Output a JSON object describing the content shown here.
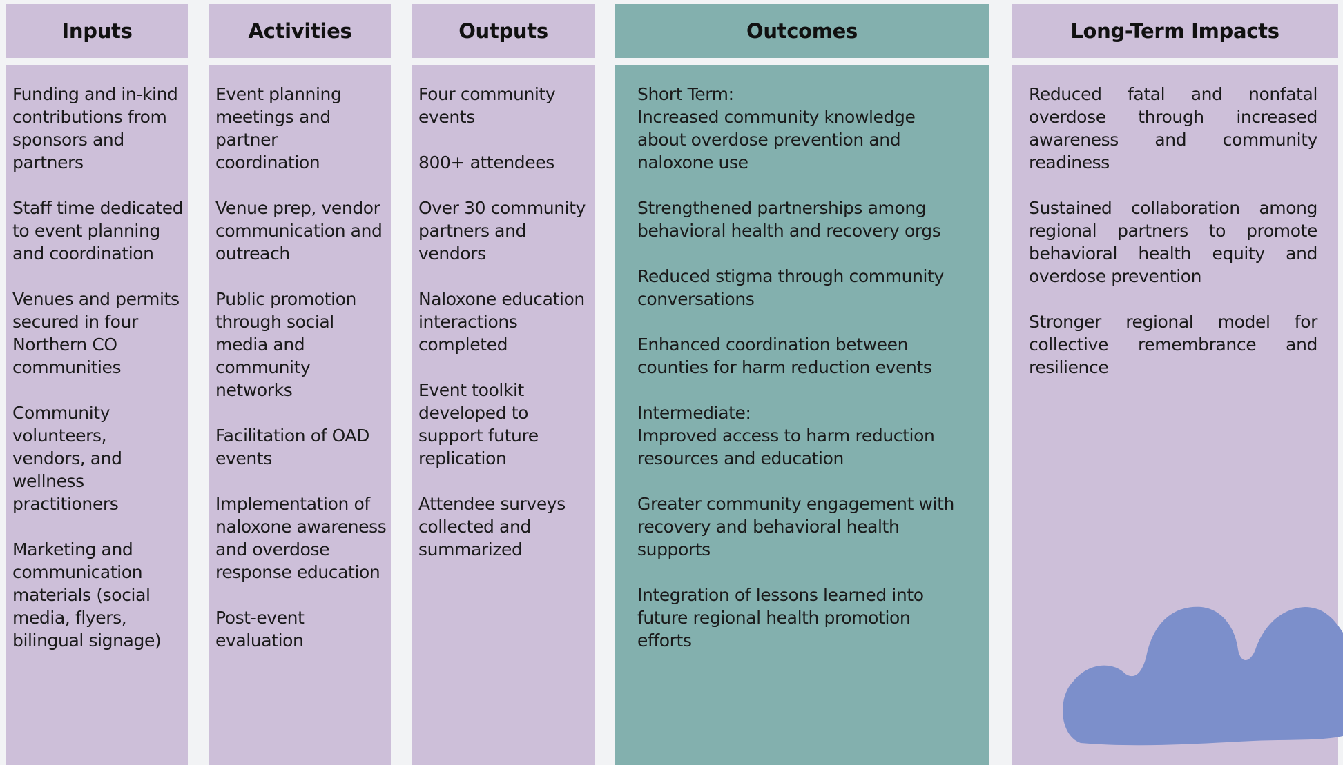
{
  "columns": [
    {
      "title": "Inputs",
      "items": [
        "Funding and in-kind contributions from sponsors and partners",
        "Staff time dedicated to event planning and coordination",
        "Venues and permits secured in four Northern CO communities",
        "Community volunteers, vendors, and wellness practitioners",
        "Marketing and communication materials (social media, flyers, bilingual signage)"
      ]
    },
    {
      "title": "Activities",
      "items": [
        "Event planning meetings and partner coordination",
        "Venue prep, vendor communication and outreach",
        "Public promotion through social media and community networks",
        "Facilitation of OAD events",
        "Implementation of naloxone awareness and overdose response education",
        "Post-event evaluation"
      ]
    },
    {
      "title": "Outputs",
      "items": [
        "Four community events",
        "800+ attendees",
        "Over 30 community partners and vendors",
        "Naloxone education interactions completed",
        "Event toolkit developed to support future replication",
        "Attendee surveys collected and summarized"
      ]
    },
    {
      "title": "Outcomes",
      "items": [
        {
          "label": "Short Term:",
          "text": "Increased community knowledge about overdose prevention and naloxone use"
        },
        "Strengthened partnerships among behavioral health and recovery orgs",
        "Reduced stigma through community conversations",
        "Enhanced coordination between counties for harm reduction events",
        {
          "label": "Intermediate:",
          "text": "Improved access to harm reduction resources and education"
        },
        "Greater community engagement with recovery and behavioral health supports",
        "Integration of lessons learned into future regional health promotion efforts"
      ]
    },
    {
      "title": "Long-Term Impacts",
      "items": [
        "Reduced fatal and nonfatal overdose through increased awareness and community readiness",
        "Sustained collaboration among regional partners to promote behavioral health equity and overdose prevention",
        "Stronger regional model for collective remembrance and resilience"
      ]
    }
  ]
}
